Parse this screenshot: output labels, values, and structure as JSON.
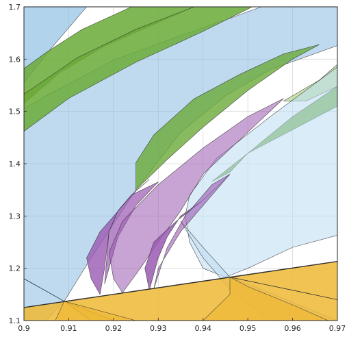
{
  "chart_data": {
    "type": "area",
    "title": "",
    "xlabel": "",
    "ylabel": "",
    "xlim": [
      0.9,
      0.97
    ],
    "ylim": [
      1.1,
      1.7
    ],
    "grid": true,
    "x_ticks": [
      0.9,
      0.91,
      0.92,
      0.93,
      0.94,
      0.95,
      0.96,
      0.97
    ],
    "x_tick_labels": [
      "0.9",
      "0.91",
      "0.92",
      "0.93",
      "0.94",
      "0.95",
      "0.96",
      "0.97"
    ],
    "y_ticks": [
      1.1,
      1.2,
      1.3,
      1.4,
      1.5,
      1.6,
      1.7
    ],
    "y_tick_labels": [
      "1.1",
      "1.2",
      "1.3",
      "1.4",
      "1.5",
      "1.6",
      "1.7"
    ],
    "colors": {
      "blue": "#7fb5df",
      "light_blue": "#bcdcf2",
      "green": "#6aaa37",
      "light_green": "#b5d58f",
      "purple": "#9a59b2",
      "orange": "#efb935",
      "edge": "#2f2f2f"
    },
    "series": [
      {
        "color": "blue",
        "opacity": 0.5,
        "points": [
          [
            0.9,
            1.463
          ],
          [
            0.9,
            1.1
          ],
          [
            0.905,
            1.1
          ],
          [
            0.909,
            1.137
          ],
          [
            0.915,
            1.22
          ],
          [
            0.925,
            1.35
          ],
          [
            0.935,
            1.46
          ],
          [
            0.945,
            1.53
          ],
          [
            0.955,
            1.58
          ],
          [
            0.97,
            1.626
          ],
          [
            0.97,
            1.7
          ],
          [
            0.953,
            1.7
          ],
          [
            0.945,
            1.675
          ],
          [
            0.935,
            1.645
          ],
          [
            0.92,
            1.598
          ],
          [
            0.905,
            1.53
          ],
          [
            0.9,
            1.505
          ]
        ]
      },
      {
        "color": "blue",
        "opacity": 0.6,
        "points": [
          [
            0.9,
            1.555
          ],
          [
            0.906,
            1.62
          ],
          [
            0.912,
            1.68
          ],
          [
            0.914,
            1.7
          ],
          [
            0.9,
            1.7
          ]
        ]
      },
      {
        "color": "green",
        "opacity": 0.85,
        "points": [
          [
            0.9,
            1.515
          ],
          [
            0.908,
            1.574
          ],
          [
            0.918,
            1.625
          ],
          [
            0.93,
            1.67
          ],
          [
            0.938,
            1.7
          ],
          [
            0.924,
            1.7
          ],
          [
            0.913,
            1.657
          ],
          [
            0.905,
            1.613
          ],
          [
            0.9,
            1.582
          ]
        ]
      },
      {
        "color": "green",
        "opacity": 0.85,
        "points": [
          [
            0.9,
            1.462
          ],
          [
            0.91,
            1.525
          ],
          [
            0.925,
            1.594
          ],
          [
            0.94,
            1.653
          ],
          [
            0.951,
            1.7
          ],
          [
            0.938,
            1.7
          ],
          [
            0.925,
            1.657
          ],
          [
            0.912,
            1.603
          ],
          [
            0.9,
            1.533
          ]
        ]
      },
      {
        "color": "green",
        "opacity": 0.8,
        "points": [
          [
            0.925,
            1.35
          ],
          [
            0.932,
            1.408
          ],
          [
            0.94,
            1.47
          ],
          [
            0.95,
            1.54
          ],
          [
            0.96,
            1.6
          ],
          [
            0.966,
            1.628
          ],
          [
            0.958,
            1.61
          ],
          [
            0.948,
            1.57
          ],
          [
            0.938,
            1.524
          ],
          [
            0.929,
            1.455
          ],
          [
            0.925,
            1.402
          ]
        ]
      },
      {
        "color": "green",
        "opacity": 0.8,
        "points": [
          [
            0.942,
            1.366
          ],
          [
            0.95,
            1.42
          ],
          [
            0.96,
            1.49
          ],
          [
            0.97,
            1.548
          ],
          [
            0.97,
            1.51
          ],
          [
            0.96,
            1.465
          ],
          [
            0.95,
            1.42
          ],
          [
            0.946,
            1.384
          ]
        ]
      },
      {
        "color": "light_green",
        "opacity": 0.7,
        "points": [
          [
            0.958,
            1.52
          ],
          [
            0.966,
            1.56
          ],
          [
            0.97,
            1.59
          ],
          [
            0.97,
            1.548
          ],
          [
            0.963,
            1.52
          ]
        ]
      },
      {
        "color": "light_blue",
        "opacity": 0.55,
        "points": [
          [
            0.936,
            1.3
          ],
          [
            0.937,
            1.34
          ],
          [
            0.943,
            1.41
          ],
          [
            0.955,
            1.49
          ],
          [
            0.97,
            1.585
          ],
          [
            0.97,
            1.263
          ],
          [
            0.96,
            1.24
          ],
          [
            0.95,
            1.2
          ],
          [
            0.945,
            1.183
          ],
          [
            0.94,
            1.2
          ],
          [
            0.937,
            1.25
          ]
        ]
      },
      {
        "color": "light_blue",
        "opacity": 0.5,
        "points": [
          [
            0.935,
            1.29
          ],
          [
            0.94,
            1.24
          ],
          [
            0.946,
            1.183
          ],
          [
            0.95,
            1.17
          ],
          [
            0.97,
            1.1
          ],
          [
            0.955,
            1.1
          ],
          [
            0.946,
            1.16
          ],
          [
            0.94,
            1.22
          ]
        ]
      },
      {
        "color": "purple",
        "opacity": 0.8,
        "points": [
          [
            0.917,
            1.15
          ],
          [
            0.915,
            1.18
          ],
          [
            0.914,
            1.22
          ],
          [
            0.917,
            1.27
          ],
          [
            0.925,
            1.348
          ],
          [
            0.928,
            1.37
          ],
          [
            0.924,
            1.34
          ],
          [
            0.921,
            1.31
          ],
          [
            0.919,
            1.27
          ],
          [
            0.918,
            1.2
          ]
        ]
      },
      {
        "color": "purple",
        "opacity": 0.7,
        "points": [
          [
            0.918,
            1.17
          ],
          [
            0.919,
            1.2
          ],
          [
            0.921,
            1.26
          ],
          [
            0.925,
            1.32
          ],
          [
            0.93,
            1.365
          ],
          [
            0.924,
            1.34
          ],
          [
            0.921,
            1.31
          ],
          [
            0.919,
            1.27
          ]
        ]
      },
      {
        "color": "purple",
        "opacity": 0.55,
        "points": [
          [
            0.922,
            1.153
          ],
          [
            0.92,
            1.18
          ],
          [
            0.919,
            1.23
          ],
          [
            0.922,
            1.29
          ],
          [
            0.93,
            1.36
          ],
          [
            0.94,
            1.43
          ],
          [
            0.95,
            1.49
          ],
          [
            0.958,
            1.525
          ],
          [
            0.95,
            1.46
          ],
          [
            0.94,
            1.38
          ],
          [
            0.935,
            1.31
          ],
          [
            0.93,
            1.25
          ],
          [
            0.926,
            1.2
          ]
        ]
      },
      {
        "color": "purple",
        "opacity": 0.85,
        "points": [
          [
            0.928,
            1.158
          ],
          [
            0.927,
            1.2
          ],
          [
            0.929,
            1.25
          ],
          [
            0.934,
            1.29
          ],
          [
            0.94,
            1.33
          ],
          [
            0.946,
            1.38
          ],
          [
            0.94,
            1.33
          ],
          [
            0.935,
            1.3
          ],
          [
            0.932,
            1.26
          ],
          [
            0.93,
            1.22
          ]
        ]
      },
      {
        "color": "purple",
        "opacity": 0.6,
        "points": [
          [
            0.929,
            1.16
          ],
          [
            0.93,
            1.2
          ],
          [
            0.935,
            1.27
          ],
          [
            0.946,
            1.38
          ],
          [
            0.942,
            1.36
          ],
          [
            0.936,
            1.3
          ],
          [
            0.932,
            1.24
          ]
        ]
      },
      {
        "color": "orange",
        "opacity": 0.85,
        "points": [
          [
            0.9,
            1.125
          ],
          [
            0.97,
            1.213
          ],
          [
            0.97,
            1.1
          ],
          [
            0.9,
            1.1
          ]
        ]
      },
      {
        "color": "orange",
        "opacity": 0.75,
        "points": [
          [
            0.909,
            1.137
          ],
          [
            0.92,
            1.1
          ],
          [
            0.915,
            1.1
          ]
        ]
      },
      {
        "color": "orange",
        "opacity": 0.75,
        "points": [
          [
            0.907,
            1.1
          ],
          [
            0.909,
            1.137
          ],
          [
            0.925,
            1.1
          ]
        ]
      },
      {
        "color": "orange",
        "opacity": 0.65,
        "points": [
          [
            0.946,
            1.183
          ],
          [
            0.95,
            1.165
          ],
          [
            0.96,
            1.13
          ],
          [
            0.968,
            1.1
          ],
          [
            0.94,
            1.1
          ],
          [
            0.946,
            1.15
          ]
        ]
      }
    ],
    "boundary_lines": [
      {
        "points": [
          [
            0.9,
            1.125
          ],
          [
            0.97,
            1.213
          ]
        ],
        "width": 1.4
      },
      {
        "points": [
          [
            0.9,
            1.18
          ],
          [
            0.909,
            1.137
          ]
        ],
        "width": 0.8
      },
      {
        "points": [
          [
            0.946,
            1.183
          ],
          [
            0.96,
            1.158
          ],
          [
            0.97,
            1.14
          ]
        ],
        "width": 0.8
      }
    ]
  }
}
